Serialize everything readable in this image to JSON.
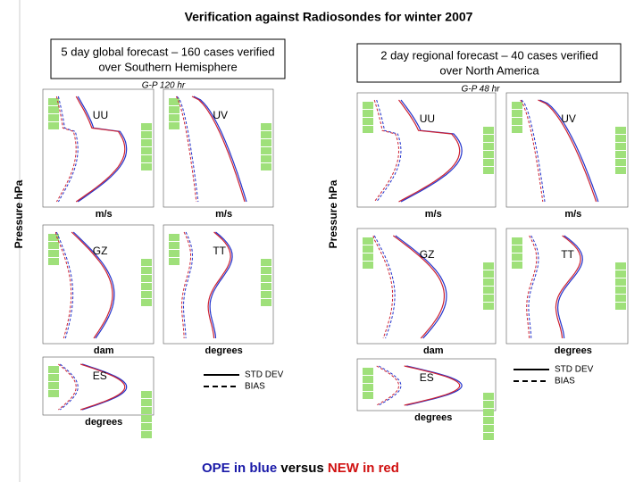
{
  "title": "Verification against Radiosondes for winter 2007",
  "y_label": "Pressure hPa",
  "sections": [
    {
      "box": [
        "5 day global forecast – 160 cases verified",
        "over Southern Hemisphere"
      ],
      "run": "G-P 120 hr",
      "panels": [
        {
          "label": "UU",
          "unit": "m/s"
        },
        {
          "label": "UV",
          "unit": "m/s"
        },
        {
          "label": "GZ",
          "unit": "dam"
        },
        {
          "label": "TT",
          "unit": "degrees"
        },
        {
          "label": "ES",
          "unit": "degrees"
        }
      ]
    },
    {
      "box": [
        "2 day regional forecast – 40 cases verified",
        "over North America"
      ],
      "run": "G-P 48 hr",
      "panels": [
        {
          "label": "UU",
          "unit": "m/s"
        },
        {
          "label": "UV",
          "unit": "m/s"
        },
        {
          "label": "GZ",
          "unit": "dam"
        },
        {
          "label": "TT",
          "unit": "degrees"
        },
        {
          "label": "ES",
          "unit": "degrees"
        }
      ]
    }
  ],
  "legend": [
    "STD DEV",
    "BIAS"
  ],
  "footer": [
    "OPE in blue",
    "versus",
    "NEW in red"
  ]
}
